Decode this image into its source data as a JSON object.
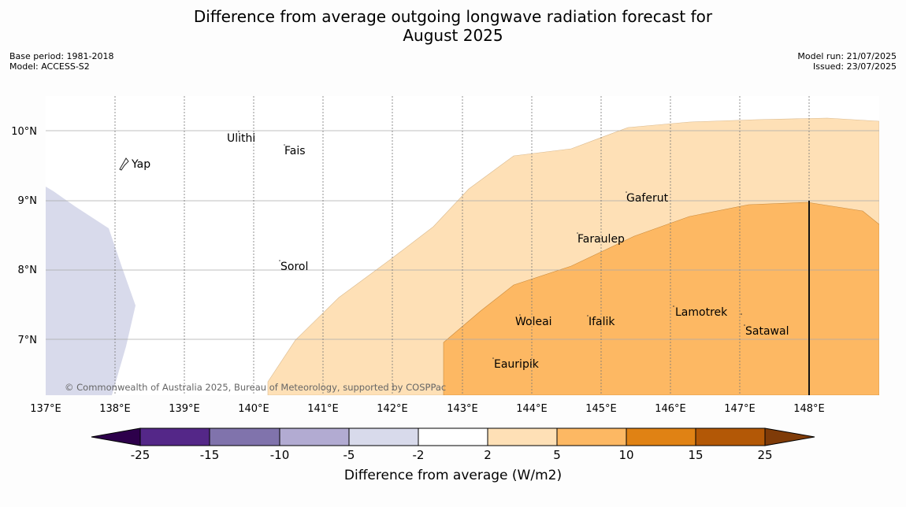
{
  "title_line1": "Difference from average outgoing longwave radiation forecast for",
  "title_line2": "August 2025",
  "base_period": "Base period: 1981-2018",
  "model": "Model: ACCESS-S2",
  "model_run": "Model run: 21/07/2025",
  "issued": "Issued: 23/07/2025",
  "copyright": "© Commonwealth of Australia 2025, Bureau of Meteorology, supported by COSPPac",
  "x_ticks": [
    "137°E",
    "138°E",
    "139°E",
    "140°E",
    "141°E",
    "142°E",
    "143°E",
    "144°E",
    "145°E",
    "146°E",
    "147°E",
    "148°E"
  ],
  "y_ticks": [
    "10°N",
    "9°N",
    "8°N",
    "7°N"
  ],
  "map": {
    "lon_range": [
      137,
      149
    ],
    "lat_range": [
      6.2,
      10.5
    ],
    "places": [
      {
        "name": "Ulithi",
        "lon": 139.7,
        "lat": 9.9
      },
      {
        "name": "Fais",
        "lon": 140.5,
        "lat": 9.75
      },
      {
        "name": "Yap",
        "lon": 138.2,
        "lat": 9.5
      },
      {
        "name": "Gaferut",
        "lon": 145.4,
        "lat": 9.05
      },
      {
        "name": "Faraulep",
        "lon": 144.65,
        "lat": 8.45
      },
      {
        "name": "Sorol",
        "lon": 140.4,
        "lat": 8.05
      },
      {
        "name": "Lamotrek",
        "lon": 146.1,
        "lat": 7.4
      },
      {
        "name": "Woleai",
        "lon": 143.8,
        "lat": 7.27
      },
      {
        "name": "Ifalik",
        "lon": 144.8,
        "lat": 7.27
      },
      {
        "name": "Satawal",
        "lon": 147.1,
        "lat": 7.13
      },
      {
        "name": "Eauripik",
        "lon": 143.5,
        "lat": 6.65
      }
    ],
    "boundary_line_lon": 148
  },
  "colorbar": {
    "label": "Difference from average (W/m2)",
    "ticks": [
      "-25",
      "-15",
      "-10",
      "-5",
      "-2",
      "2",
      "5",
      "10",
      "15",
      "25"
    ],
    "colors": [
      "#542788",
      "#8073ac",
      "#b2abd2",
      "#d8daeb",
      "#ffffff",
      "#fee0b6",
      "#fdb863",
      "#e08214",
      "#b35806"
    ],
    "under_color": "#2d004b",
    "over_color": "#7f3b08"
  }
}
